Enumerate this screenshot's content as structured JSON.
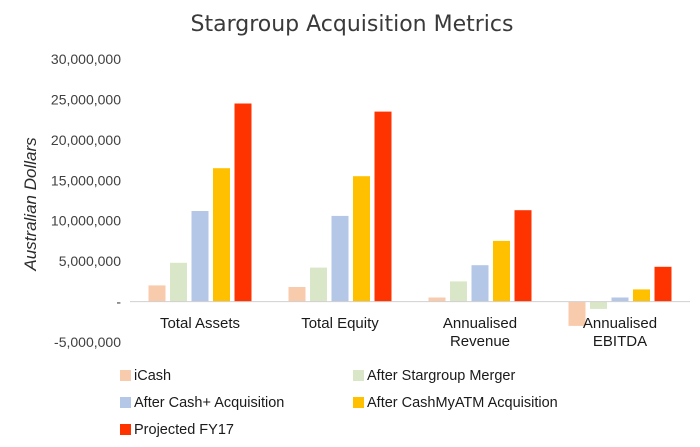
{
  "chart_data": {
    "type": "bar",
    "title": "Stargroup Acquisition Metrics",
    "ylabel": "Australian Dollars",
    "xlabel": "",
    "ylim": [
      -5000000,
      30000000
    ],
    "yticks": [
      {
        "value": 30000000,
        "label": "30,000,000"
      },
      {
        "value": 25000000,
        "label": "25,000,000"
      },
      {
        "value": 20000000,
        "label": "20,000,000"
      },
      {
        "value": 15000000,
        "label": "15,000,000"
      },
      {
        "value": 10000000,
        "label": "10,000,000"
      },
      {
        "value": 5000000,
        "label": "5,000,000"
      },
      {
        "value": 0,
        "label": "-"
      },
      {
        "value": -5000000,
        "label": "-5,000,000"
      }
    ],
    "categories": [
      [
        "Total Assets"
      ],
      [
        "Total Equity"
      ],
      [
        "Annualised",
        "Revenue"
      ],
      [
        "Annualised",
        "EBITDA"
      ]
    ],
    "series": [
      {
        "name": "iCash",
        "color": "#f8cbad",
        "values": [
          2000000,
          1800000,
          500000,
          -3000000
        ]
      },
      {
        "name": "After Stargroup Merger",
        "color": "#d9e6c7",
        "values": [
          4800000,
          4200000,
          2500000,
          -900000
        ]
      },
      {
        "name": "After Cash+ Acquisition",
        "color": "#b4c7e7",
        "values": [
          11200000,
          10600000,
          4500000,
          500000
        ]
      },
      {
        "name": "After CashMyATM Acquisition",
        "color": "#ffc000",
        "values": [
          16500000,
          15500000,
          7500000,
          1500000
        ]
      },
      {
        "name": "Projected FY17",
        "color": "#ff3300",
        "values": [
          24500000,
          23500000,
          11300000,
          4300000
        ]
      }
    ],
    "legend_position": "bottom",
    "grid": false
  }
}
